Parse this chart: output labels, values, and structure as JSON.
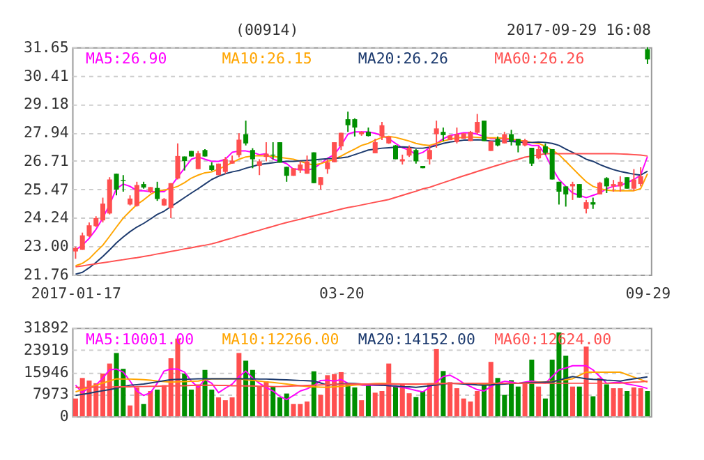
{
  "chart_data": [
    {
      "type": "candlestick",
      "title": "(00914)",
      "annotations": [
        "2017-09-29 16:08"
      ],
      "categories": [
        "2017-01-17",
        null,
        null,
        null,
        null,
        null,
        null,
        null,
        null,
        null,
        null,
        null,
        null,
        null,
        null,
        null,
        null,
        null,
        null,
        null,
        null,
        null,
        null,
        null,
        null,
        null,
        null,
        null,
        null,
        null,
        null,
        null,
        null,
        null,
        null,
        null,
        null,
        null,
        null,
        "03-20",
        null,
        null,
        null,
        null,
        null,
        null,
        null,
        null,
        null,
        null,
        null,
        null,
        null,
        null,
        null,
        null,
        null,
        null,
        null,
        null,
        null,
        null,
        null,
        null,
        null,
        null,
        null,
        null,
        null,
        null,
        null,
        null,
        null,
        null,
        null,
        null,
        null,
        null,
        null,
        null,
        null,
        null,
        null,
        null,
        "09-29"
      ],
      "ohlc": [
        [
          22.77,
          22.98,
          22.45,
          22.92
        ],
        [
          22.84,
          23.59,
          22.84,
          23.47
        ],
        [
          23.44,
          24.03,
          23.4,
          23.91
        ],
        [
          23.87,
          24.3,
          23.83,
          24.22
        ],
        [
          24.12,
          25.11,
          24.03,
          24.85
        ],
        [
          24.42,
          26.0,
          24.38,
          25.9
        ],
        [
          26.15,
          26.15,
          25.21,
          25.46
        ],
        [
          25.88,
          26.09,
          25.37,
          25.84
        ],
        [
          24.81,
          25.21,
          24.77,
          25.07
        ],
        [
          24.75,
          25.8,
          24.72,
          25.66
        ],
        [
          25.7,
          25.8,
          25.5,
          25.55
        ],
        [
          25.37,
          25.57,
          25.31,
          25.57
        ],
        [
          25.53,
          25.8,
          24.97,
          25.05
        ],
        [
          24.77,
          25.09,
          24.75,
          25.05
        ],
        [
          24.66,
          25.74,
          24.22,
          25.74
        ],
        [
          25.94,
          27.47,
          25.9,
          26.92
        ],
        [
          26.9,
          26.9,
          26.29,
          26.7
        ],
        [
          27.14,
          27.14,
          26.9,
          26.9
        ],
        [
          26.35,
          27.14,
          26.35,
          27.04
        ],
        [
          27.18,
          27.22,
          26.9,
          26.9
        ],
        [
          26.51,
          26.65,
          26.27,
          26.31
        ],
        [
          26.09,
          26.59,
          26.09,
          26.59
        ],
        [
          26.23,
          26.88,
          26.15,
          26.78
        ],
        [
          26.59,
          26.94,
          26.59,
          26.72
        ],
        [
          26.96,
          27.91,
          26.86,
          27.63
        ],
        [
          27.87,
          28.46,
          27.38,
          27.47
        ],
        [
          27.18,
          27.26,
          26.39,
          26.78
        ],
        [
          26.49,
          26.78,
          26.09,
          26.69
        ],
        [
          26.88,
          27.52,
          26.69,
          27.02
        ],
        [
          26.98,
          27.52,
          26.78,
          26.94
        ],
        [
          27.52,
          27.52,
          26.63,
          26.63
        ],
        [
          26.45,
          26.45,
          25.8,
          26.06
        ],
        [
          26.06,
          26.39,
          26.06,
          26.39
        ],
        [
          26.29,
          26.69,
          26.19,
          26.55
        ],
        [
          26.15,
          26.94,
          26.15,
          26.69
        ],
        [
          27.08,
          27.08,
          25.74,
          25.74
        ],
        [
          25.66,
          26.0,
          25.46,
          26.0
        ],
        [
          26.35,
          26.78,
          26.15,
          26.65
        ],
        [
          26.65,
          27.52,
          26.65,
          27.52
        ],
        [
          27.34,
          27.93,
          27.18,
          27.93
        ],
        [
          28.52,
          28.85,
          27.97,
          28.26
        ],
        [
          28.52,
          28.56,
          27.77,
          28.16
        ],
        [
          27.87,
          28.0,
          27.8,
          27.97
        ],
        [
          27.97,
          28.16,
          27.77,
          27.79
        ],
        [
          27.04,
          27.67,
          27.04,
          27.52
        ],
        [
          27.77,
          28.4,
          27.61,
          28.26
        ],
        [
          27.47,
          27.77,
          27.45,
          27.77
        ],
        [
          27.38,
          27.4,
          26.78,
          26.78
        ],
        [
          26.69,
          26.98,
          26.55,
          26.78
        ],
        [
          26.94,
          27.38,
          26.88,
          27.28
        ],
        [
          27.18,
          27.22,
          26.59,
          26.69
        ],
        [
          26.49,
          26.49,
          26.39,
          26.39
        ],
        [
          26.78,
          27.38,
          26.55,
          27.18
        ],
        [
          27.87,
          28.46,
          27.28,
          28.12
        ],
        [
          27.97,
          28.16,
          27.57,
          27.83
        ],
        [
          27.61,
          27.83,
          27.61,
          27.81
        ],
        [
          27.53,
          28.16,
          27.47,
          27.87
        ],
        [
          27.67,
          27.91,
          27.67,
          27.91
        ],
        [
          27.57,
          28.01,
          27.57,
          27.97
        ],
        [
          27.93,
          28.75,
          27.87,
          28.4
        ],
        [
          28.46,
          28.46,
          27.57,
          27.57
        ],
        [
          27.14,
          27.57,
          27.14,
          27.57
        ],
        [
          27.67,
          27.77,
          27.34,
          27.38
        ],
        [
          27.47,
          27.97,
          27.47,
          27.87
        ],
        [
          27.87,
          28.06,
          27.38,
          27.57
        ],
        [
          27.67,
          27.67,
          27.08,
          27.38
        ],
        [
          27.38,
          27.67,
          27.34,
          27.61
        ],
        [
          27.28,
          27.28,
          26.49,
          26.59
        ],
        [
          26.82,
          27.34,
          26.78,
          27.22
        ],
        [
          27.34,
          27.47,
          26.98,
          27.06
        ],
        [
          27.22,
          27.22,
          25.9,
          25.9
        ],
        [
          25.8,
          25.8,
          24.81,
          25.37
        ],
        [
          25.6,
          25.6,
          24.72,
          25.25
        ],
        [
          25.6,
          25.8,
          25.01,
          25.7
        ],
        [
          25.7,
          25.7,
          25.11,
          25.11
        ],
        [
          24.62,
          25.01,
          24.42,
          24.91
        ],
        [
          24.91,
          25.11,
          24.62,
          24.81
        ],
        [
          25.25,
          25.8,
          25.25,
          25.76
        ],
        [
          25.96,
          26.0,
          25.31,
          25.6
        ],
        [
          25.6,
          25.88,
          25.37,
          25.7
        ],
        [
          25.6,
          26.04,
          25.37,
          25.8
        ],
        [
          26.0,
          26.0,
          25.5,
          25.5
        ],
        [
          25.5,
          26.35,
          25.41,
          25.9
        ],
        [
          25.7,
          26.43,
          25.6,
          26.04
        ],
        [
          31.57,
          31.65,
          30.92,
          31.12
        ]
      ],
      "colors": [
        "#ff4f4f",
        "#ff4f4f",
        "#ff4f4f",
        "#ff4f4f",
        "#ff4f4f",
        "#ff4f4f",
        "#008f00",
        "#008f00",
        "#ff4f4f",
        "#ff4f4f",
        "#008f00",
        "#ff4f4f",
        "#008f00",
        "#ff4f4f",
        "#ff4f4f",
        "#ff4f4f",
        "#008f00",
        "#008f00",
        "#ff4f4f",
        "#008f00",
        "#008f00",
        "#ff4f4f",
        "#ff4f4f",
        "#ff4f4f",
        "#ff4f4f",
        "#008f00",
        "#008f00",
        "#ff4f4f",
        "#ff4f4f",
        "#008f00",
        "#008f00",
        "#008f00",
        "#ff4f4f",
        "#ff4f4f",
        "#ff4f4f",
        "#008f00",
        "#ff4f4f",
        "#ff4f4f",
        "#ff4f4f",
        "#ff4f4f",
        "#008f00",
        "#008f00",
        "#ff4f4f",
        "#008f00",
        "#ff4f4f",
        "#ff4f4f",
        "#ff4f4f",
        "#008f00",
        "#ff4f4f",
        "#ff4f4f",
        "#008f00",
        "#008f00",
        "#ff4f4f",
        "#ff4f4f",
        "#008f00",
        "#ff4f4f",
        "#ff4f4f",
        "#ff4f4f",
        "#ff4f4f",
        "#ff4f4f",
        "#008f00",
        "#ff4f4f",
        "#008f00",
        "#ff4f4f",
        "#008f00",
        "#008f00",
        "#ff4f4f",
        "#008f00",
        "#ff4f4f",
        "#008f00",
        "#008f00",
        "#008f00",
        "#008f00",
        "#ff4f4f",
        "#008f00",
        "#ff4f4f",
        "#008f00",
        "#ff4f4f",
        "#008f00",
        "#ff4f4f",
        "#ff4f4f",
        "#008f00",
        "#ff4f4f",
        "#ff4f4f",
        "#008f00"
      ],
      "series": [
        {
          "type": "line",
          "name": "MA5:26.90",
          "color": "#ff00ff",
          "values": [
            22.84,
            23.04,
            23.34,
            23.73,
            24.22,
            24.81,
            25.5,
            25.7,
            25.6,
            25.41,
            25.41,
            25.37,
            25.37,
            25.37,
            25.6,
            26.0,
            26.39,
            26.78,
            26.88,
            26.78,
            26.69,
            26.69,
            26.78,
            27.08,
            27.14,
            27.14,
            27.08,
            26.98,
            27.02,
            26.78,
            26.69,
            26.59,
            26.35,
            26.35,
            26.29,
            26.39,
            26.59,
            26.82,
            26.98,
            27.38,
            27.87,
            27.97,
            27.97,
            27.97,
            27.91,
            27.81,
            27.67,
            27.47,
            27.28,
            27.18,
            26.98,
            27.08,
            27.28,
            27.47,
            27.67,
            27.81,
            27.87,
            27.93,
            27.93,
            27.87,
            27.77,
            27.67,
            27.67,
            27.67,
            27.61,
            27.57,
            27.47,
            27.38,
            27.38,
            26.98,
            26.39,
            25.9,
            25.6,
            25.31,
            25.21,
            25.11,
            25.21,
            25.31,
            25.5,
            25.6,
            25.64,
            25.76,
            25.9,
            26.09,
            26.9
          ]
        },
        {
          "type": "line",
          "name": "MA10:26.15",
          "color": "#ffa500",
          "values": [
            22.15,
            22.25,
            22.45,
            22.75,
            23.04,
            23.43,
            23.83,
            24.22,
            24.52,
            24.81,
            25.01,
            25.25,
            25.41,
            25.44,
            25.5,
            25.6,
            25.76,
            25.96,
            26.09,
            26.19,
            26.23,
            26.35,
            26.49,
            26.63,
            26.78,
            26.88,
            26.92,
            26.94,
            26.92,
            26.9,
            26.86,
            26.82,
            26.78,
            26.69,
            26.59,
            26.53,
            26.59,
            26.69,
            26.78,
            26.92,
            27.08,
            27.22,
            27.38,
            27.47,
            27.61,
            27.73,
            27.77,
            27.73,
            27.65,
            27.57,
            27.47,
            27.41,
            27.38,
            27.47,
            27.57,
            27.65,
            27.71,
            27.73,
            27.75,
            27.73,
            27.71,
            27.71,
            27.71,
            27.69,
            27.67,
            27.61,
            27.57,
            27.51,
            27.47,
            27.34,
            27.18,
            26.98,
            26.69,
            26.39,
            26.09,
            25.8,
            25.6,
            25.5,
            25.44,
            25.41,
            25.41,
            25.41,
            25.41,
            25.5,
            26.15
          ]
        },
        {
          "type": "line",
          "name": "MA20:26.26",
          "color": "#1c3a6e",
          "values": [
            21.78,
            21.86,
            22.06,
            22.29,
            22.55,
            22.84,
            23.14,
            23.4,
            23.63,
            23.83,
            23.99,
            24.18,
            24.38,
            24.52,
            24.72,
            24.91,
            25.11,
            25.31,
            25.5,
            25.7,
            25.9,
            26.04,
            26.15,
            26.23,
            26.29,
            26.39,
            26.47,
            26.55,
            26.59,
            26.63,
            26.67,
            26.69,
            26.69,
            26.71,
            26.73,
            26.75,
            26.78,
            26.8,
            26.82,
            26.84,
            26.88,
            26.98,
            27.08,
            27.18,
            27.22,
            27.26,
            27.28,
            27.3,
            27.32,
            27.3,
            27.26,
            27.26,
            27.3,
            27.38,
            27.47,
            27.53,
            27.57,
            27.61,
            27.61,
            27.63,
            27.61,
            27.57,
            27.57,
            27.57,
            27.55,
            27.53,
            27.51,
            27.51,
            27.53,
            27.51,
            27.47,
            27.38,
            27.22,
            27.08,
            26.94,
            26.78,
            26.69,
            26.55,
            26.43,
            26.33,
            26.25,
            26.19,
            26.13,
            26.09,
            26.26
          ]
        },
        {
          "type": "line",
          "name": "MA60:26.26",
          "color": "#ff5050",
          "values": [
            22.1,
            22.14,
            22.19,
            22.23,
            22.28,
            22.32,
            22.37,
            22.41,
            22.46,
            22.5,
            22.55,
            22.6,
            22.66,
            22.71,
            22.77,
            22.82,
            22.88,
            22.93,
            22.99,
            23.04,
            23.1,
            23.18,
            23.27,
            23.35,
            23.44,
            23.52,
            23.61,
            23.69,
            23.78,
            23.86,
            23.95,
            24.03,
            24.1,
            24.17,
            24.25,
            24.32,
            24.39,
            24.46,
            24.54,
            24.61,
            24.68,
            24.73,
            24.79,
            24.85,
            24.91,
            24.97,
            25.03,
            25.12,
            25.21,
            25.3,
            25.39,
            25.49,
            25.56,
            25.66,
            25.76,
            25.86,
            25.96,
            26.06,
            26.15,
            26.25,
            26.34,
            26.43,
            26.52,
            26.61,
            26.7,
            26.78,
            26.87,
            26.92,
            26.97,
            27.02,
            27.02,
            27.02,
            27.02,
            27.02,
            27.02,
            27.02,
            27.02,
            27.02,
            27.02,
            27.02,
            27.01,
            27.0,
            26.98,
            26.96,
            26.92
          ]
        }
      ],
      "ylim": [
        21.76,
        31.65
      ],
      "yticks": [
        21.76,
        {
          "value": 23,
          "label": "23.00"
        },
        24.24,
        25.47,
        26.71,
        27.94,
        29.18,
        30.41,
        31.65
      ],
      "grid": "y",
      "legend": "top"
    },
    {
      "type": "bar",
      "categories": [
        null,
        null,
        null,
        null,
        null,
        null,
        null,
        null,
        null,
        null,
        null,
        null,
        null,
        null,
        null,
        null,
        null,
        null,
        null,
        null,
        null,
        null,
        null,
        null,
        null,
        null,
        null,
        null,
        null,
        null,
        null,
        null,
        null,
        null,
        null,
        null,
        null,
        null,
        null,
        null,
        null,
        null,
        null,
        null,
        null,
        null,
        null,
        null,
        null,
        null,
        null,
        null,
        null,
        null,
        null,
        null,
        null,
        null,
        null,
        null,
        null,
        null,
        null,
        null,
        null,
        null,
        null,
        null,
        null,
        null,
        null,
        null,
        null,
        null,
        null,
        null,
        null,
        null,
        null,
        null,
        null,
        null,
        null,
        null,
        null
      ],
      "series": [
        {
          "type": "bar",
          "values": [
            6400,
            13800,
            12900,
            11900,
            15400,
            19000,
            22800,
            17100,
            3900,
            10400,
            4400,
            9100,
            9600,
            11200,
            20900,
            28000,
            15400,
            9600,
            11500,
            16700,
            9600,
            6800,
            5800,
            6800,
            22800,
            20000,
            16700,
            11000,
            12600,
            10700,
            6800,
            8200,
            4400,
            4400,
            5300,
            16200,
            7700,
            14800,
            15200,
            15900,
            11500,
            10400,
            5800,
            11200,
            8500,
            9100,
            19000,
            10700,
            11500,
            8300,
            6900,
            9100,
            11900,
            24200,
            16300,
            12300,
            10100,
            6400,
            5300,
            9100,
            11200,
            19600,
            13800,
            7700,
            13000,
            10700,
            11900,
            20400,
            10700,
            6400,
            20400,
            30200,
            21800,
            10700,
            10700,
            25100,
            7200,
            13800,
            11500,
            10100,
            10100,
            9100,
            10400,
            10100,
            9100
          ],
          "colors": [
            "#ff4f4f",
            "#ff4f4f",
            "#ff4f4f",
            "#ff4f4f",
            "#ff4f4f",
            "#ff4f4f",
            "#008f00",
            "#008f00",
            "#ff4f4f",
            "#ff4f4f",
            "#008f00",
            "#ff4f4f",
            "#008f00",
            "#ff4f4f",
            "#ff4f4f",
            "#ff4f4f",
            "#008f00",
            "#008f00",
            "#ff4f4f",
            "#008f00",
            "#008f00",
            "#ff4f4f",
            "#ff4f4f",
            "#ff4f4f",
            "#ff4f4f",
            "#008f00",
            "#008f00",
            "#ff4f4f",
            "#ff4f4f",
            "#008f00",
            "#008f00",
            "#008f00",
            "#ff4f4f",
            "#ff4f4f",
            "#ff4f4f",
            "#008f00",
            "#ff4f4f",
            "#ff4f4f",
            "#ff4f4f",
            "#ff4f4f",
            "#008f00",
            "#008f00",
            "#ff4f4f",
            "#008f00",
            "#ff4f4f",
            "#ff4f4f",
            "#ff4f4f",
            "#008f00",
            "#ff4f4f",
            "#ff4f4f",
            "#008f00",
            "#008f00",
            "#ff4f4f",
            "#ff4f4f",
            "#008f00",
            "#ff4f4f",
            "#ff4f4f",
            "#ff4f4f",
            "#ff4f4f",
            "#ff4f4f",
            "#008f00",
            "#ff4f4f",
            "#008f00",
            "#008f00",
            "#008f00",
            "#008f00",
            "#ff4f4f",
            "#008f00",
            "#ff4f4f",
            "#008f00",
            "#008f00",
            "#008f00",
            "#008f00",
            "#ff4f4f",
            "#008f00",
            "#ff4f4f",
            "#008f00",
            "#ff4f4f",
            "#008f00",
            "#ff4f4f",
            "#ff4f4f",
            "#008f00",
            "#ff4f4f",
            "#ff4f4f",
            "#008f00"
          ]
        },
        {
          "type": "line",
          "name": "MA5:10001.00",
          "color": "#ff00ff",
          "values": [
            11200,
            8500,
            10400,
            11200,
            13800,
            16700,
            17000,
            15900,
            12700,
            9100,
            7500,
            8500,
            11900,
            16300,
            17000,
            17000,
            15900,
            12700,
            10400,
            13200,
            11900,
            8500,
            10100,
            11600,
            14300,
            16300,
            13800,
            11900,
            10400,
            9100,
            7200,
            6000,
            7500,
            9100,
            9900,
            11000,
            12900,
            13000,
            12700,
            13200,
            11900,
            11500,
            11200,
            11200,
            11200,
            11200,
            11200,
            10700,
            10400,
            9900,
            9300,
            8800,
            10400,
            12400,
            14300,
            14800,
            13500,
            11900,
            10700,
            9600,
            9100,
            10700,
            11900,
            12600,
            12300,
            11900,
            12300,
            12700,
            12300,
            11900,
            14300,
            16700,
            17400,
            18200,
            18200,
            18200,
            16700,
            14300,
            11900,
            12100,
            12300,
            11600,
            11200,
            10700,
            10000
          ]
        },
        {
          "type": "line",
          "name": "MA10:12266.00",
          "color": "#ffa500",
          "values": [
            8800,
            9600,
            10400,
            11200,
            12000,
            12700,
            13500,
            13400,
            13400,
            13300,
            13200,
            13000,
            12700,
            12500,
            12300,
            12400,
            12500,
            12600,
            12700,
            13100,
            13500,
            13500,
            13500,
            13500,
            13500,
            13200,
            12900,
            12700,
            12400,
            12200,
            11900,
            11600,
            11300,
            11000,
            10700,
            10600,
            10500,
            10400,
            10600,
            10800,
            11000,
            11200,
            11400,
            11600,
            11800,
            11900,
            11800,
            11700,
            11600,
            11500,
            11500,
            11600,
            11700,
            11800,
            11900,
            11900,
            11800,
            11800,
            11700,
            11700,
            11600,
            11700,
            11800,
            11900,
            11900,
            11900,
            12000,
            12200,
            12300,
            12400,
            12600,
            12900,
            13200,
            13500,
            14700,
            15900,
            15900,
            15900,
            15900,
            15900,
            15900,
            15000,
            14100,
            13200,
            12300
          ]
        },
        {
          "type": "line",
          "name": "MA20:14152.00",
          "color": "#1c3a6e",
          "values": [
            7500,
            7900,
            8300,
            8800,
            9200,
            9600,
            10100,
            10700,
            11200,
            11400,
            11600,
            12000,
            12400,
            12800,
            13200,
            13300,
            13300,
            13400,
            13500,
            13500,
            13500,
            13500,
            13500,
            13500,
            13500,
            13500,
            13500,
            13400,
            13400,
            13300,
            13200,
            13100,
            13000,
            12900,
            12800,
            12700,
            12000,
            11200,
            11400,
            11700,
            11900,
            11800,
            11600,
            11500,
            11300,
            11200,
            11000,
            10900,
            10700,
            10600,
            10400,
            10700,
            11000,
            11300,
            11600,
            11900,
            11800,
            11600,
            11500,
            11300,
            11200,
            11300,
            11500,
            11600,
            11800,
            11900,
            12000,
            12100,
            12200,
            12300,
            12400,
            13000,
            13700,
            14300,
            13900,
            13500,
            13300,
            13200,
            13000,
            12900,
            12700,
            13100,
            13500,
            13800,
            14200
          ]
        },
        {
          "type": "line",
          "name": "MA60:12624.00",
          "color": "#ff5050",
          "values": [
            10400,
            10400,
            10400,
            10500,
            10500,
            10500,
            10600,
            10600,
            10600,
            10700,
            10700,
            10800,
            10800,
            10900,
            10900,
            11000,
            11000,
            11100,
            11100,
            11200,
            11200,
            11100,
            11100,
            11000,
            11000,
            10900,
            10900,
            10800,
            10800,
            10700,
            10700,
            10800,
            10900,
            11000,
            11100,
            11200,
            11300,
            11400,
            11500,
            11500,
            11600,
            11600,
            11600,
            11600,
            11600,
            11600,
            11600,
            11600,
            11600,
            11600,
            11600,
            11600,
            11700,
            11700,
            11800,
            11800,
            11800,
            11900,
            11900,
            11900,
            11900,
            11900,
            11900,
            11900,
            11900,
            11900,
            11900,
            11900,
            11900,
            11900,
            11900,
            11900,
            11900,
            11900,
            11900,
            11900,
            11900,
            11900,
            11900,
            11900,
            11900,
            12100,
            12300,
            12400,
            12600
          ]
        }
      ],
      "ylim": [
        0,
        31892
      ],
      "yticks": [
        0,
        7973,
        15946,
        23919,
        31892
      ],
      "grid": "y",
      "legend": "top",
      "tick_labels": "y"
    }
  ]
}
